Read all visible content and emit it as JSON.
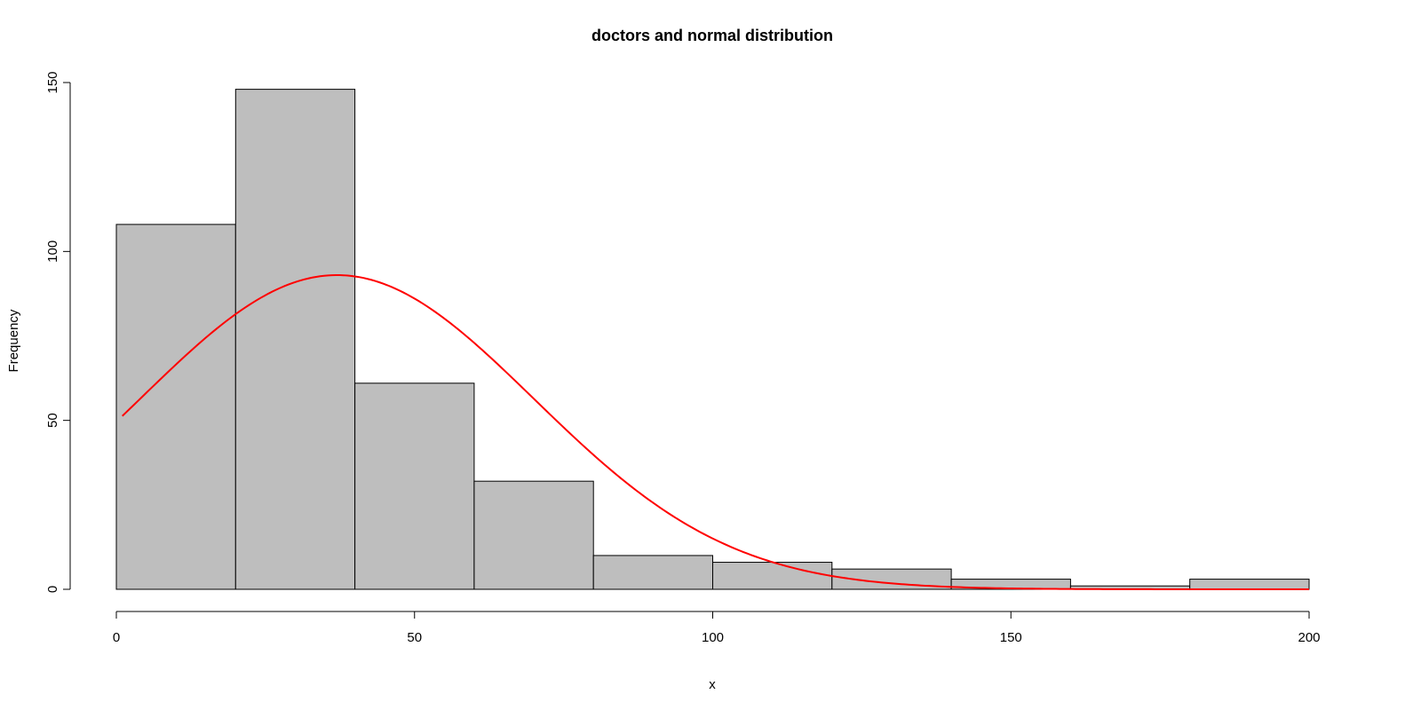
{
  "chart_data": {
    "type": "bar",
    "title": "doctors and normal distribution",
    "xlabel": "x",
    "ylabel": "Frequency",
    "xlim": [
      0,
      200
    ],
    "ylim": [
      0,
      150
    ],
    "bins": [
      {
        "from": 0,
        "to": 20,
        "count": 108
      },
      {
        "from": 20,
        "to": 40,
        "count": 148
      },
      {
        "from": 40,
        "to": 60,
        "count": 61
      },
      {
        "from": 60,
        "to": 80,
        "count": 32
      },
      {
        "from": 80,
        "to": 100,
        "count": 10
      },
      {
        "from": 100,
        "to": 120,
        "count": 8
      },
      {
        "from": 120,
        "to": 140,
        "count": 6
      },
      {
        "from": 140,
        "to": 160,
        "count": 3
      },
      {
        "from": 160,
        "to": 180,
        "count": 1
      },
      {
        "from": 180,
        "to": 200,
        "count": 3
      }
    ],
    "x_ticks": [
      0,
      50,
      100,
      150,
      200
    ],
    "y_ticks": [
      0,
      50,
      100,
      150
    ],
    "curve": {
      "type": "normal",
      "mean": 37,
      "sd": 33,
      "peak": 93,
      "x_range": [
        1,
        200
      ]
    },
    "colors": {
      "bar_fill": "#bebebe",
      "bar_stroke": "#000000",
      "curve": "#ff0000"
    },
    "grid": false
  }
}
